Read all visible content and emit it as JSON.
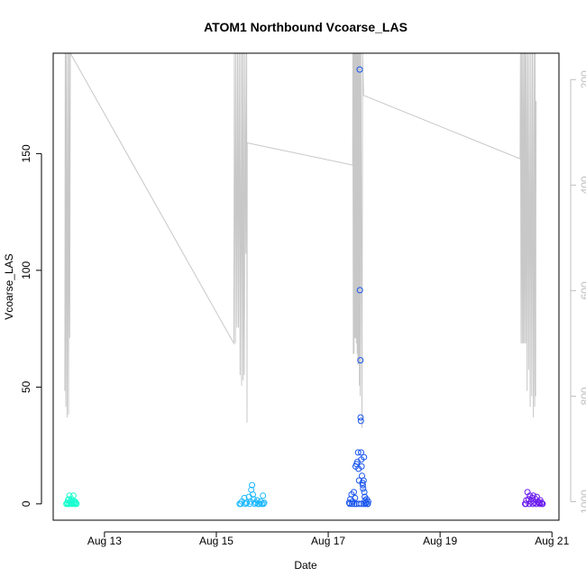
{
  "chart_data": {
    "type": "scatter",
    "title": "ATOM1 Northbound Vcoarse_LAS",
    "xlabel": "Date",
    "ylabel": "Vcoarse_LAS",
    "xlim": [
      "2019-08-12T02:00",
      "2019-08-21T03:00"
    ],
    "ylim": [
      -7,
      193
    ],
    "x_ticks": [
      "2019-08-13",
      "2019-08-15",
      "2019-08-17",
      "2019-08-19",
      "2019-08-21"
    ],
    "x_tick_labels": [
      "Aug 13",
      "Aug 15",
      "Aug 17",
      "Aug 19",
      "Aug 21"
    ],
    "y_ticks": [
      0,
      50,
      100,
      150
    ],
    "grid": false,
    "right_axis": {
      "color": "#bfbfbf",
      "ticks": [
        200,
        400,
        600,
        800,
        1000
      ],
      "range_top_to_bottom": [
        150,
        1035
      ],
      "note_series": "grey line on inverted right axis"
    },
    "series": [
      {
        "group": 1,
        "color": "#1affd0",
        "points": [
          [
            "2019-08-12T08:00",
            0.5
          ],
          [
            "2019-08-12T08:20",
            1.5
          ],
          [
            "2019-08-12T08:40",
            2
          ],
          [
            "2019-08-12T09:00",
            3.5
          ],
          [
            "2019-08-12T09:20",
            1
          ],
          [
            "2019-08-12T09:40",
            0.5
          ],
          [
            "2019-08-12T10:00",
            2
          ],
          [
            "2019-08-12T10:20",
            1
          ],
          [
            "2019-08-12T10:40",
            3.5
          ],
          [
            "2019-08-12T11:00",
            0.5
          ],
          [
            "2019-08-12T11:20",
            1
          ],
          [
            "2019-08-12T11:40",
            0.5
          ],
          [
            "2019-08-12T07:40",
            0
          ],
          [
            "2019-08-12T08:10",
            0
          ],
          [
            "2019-08-12T08:50",
            0
          ],
          [
            "2019-08-12T09:30",
            0
          ],
          [
            "2019-08-12T10:10",
            0
          ],
          [
            "2019-08-12T10:50",
            0
          ],
          [
            "2019-08-12T11:30",
            0
          ],
          [
            "2019-08-12T12:00",
            0
          ]
        ]
      },
      {
        "group": 2,
        "color": "#1ab8ff",
        "points": [
          [
            "2019-08-15T10:00",
            0
          ],
          [
            "2019-08-15T11:00",
            1
          ],
          [
            "2019-08-15T12:00",
            2.5
          ],
          [
            "2019-08-15T13:00",
            0.5
          ],
          [
            "2019-08-15T14:00",
            3
          ],
          [
            "2019-08-15T14:40",
            1
          ],
          [
            "2019-08-15T15:00",
            6
          ],
          [
            "2019-08-15T15:20",
            8
          ],
          [
            "2019-08-15T15:40",
            4
          ],
          [
            "2019-08-15T16:00",
            2
          ],
          [
            "2019-08-15T17:00",
            0.5
          ],
          [
            "2019-08-15T17:30",
            1.5
          ],
          [
            "2019-08-15T18:00",
            0
          ],
          [
            "2019-08-15T19:00",
            1
          ],
          [
            "2019-08-15T20:00",
            3.5
          ],
          [
            "2019-08-15T20:30",
            0.5
          ],
          [
            "2019-08-15T10:30",
            0
          ],
          [
            "2019-08-15T12:30",
            0
          ],
          [
            "2019-08-15T14:20",
            0
          ],
          [
            "2019-08-15T16:30",
            0
          ],
          [
            "2019-08-15T18:30",
            0
          ],
          [
            "2019-08-15T19:30",
            0
          ],
          [
            "2019-08-15T20:10",
            0
          ]
        ]
      },
      {
        "group": 3,
        "color": "#1a55ee",
        "points": [
          [
            "2019-08-17T09:00",
            0.5
          ],
          [
            "2019-08-17T09:30",
            2
          ],
          [
            "2019-08-17T10:00",
            4
          ],
          [
            "2019-08-17T10:30",
            1
          ],
          [
            "2019-08-17T11:00",
            5
          ],
          [
            "2019-08-17T11:30",
            2.5
          ],
          [
            "2019-08-17T11:45",
            16
          ],
          [
            "2019-08-17T12:10",
            17
          ],
          [
            "2019-08-17T12:30",
            18
          ],
          [
            "2019-08-17T12:50",
            22
          ],
          [
            "2019-08-17T13:00",
            15
          ],
          [
            "2019-08-17T13:15",
            10
          ],
          [
            "2019-08-17T13:30",
            186
          ],
          [
            "2019-08-17T13:35",
            91.5
          ],
          [
            "2019-08-17T13:50",
            61.5
          ],
          [
            "2019-08-17T13:55",
            37
          ],
          [
            "2019-08-17T14:00",
            35.5
          ],
          [
            "2019-08-17T14:05",
            22
          ],
          [
            "2019-08-17T14:10",
            19
          ],
          [
            "2019-08-17T14:20",
            16
          ],
          [
            "2019-08-17T14:30",
            12
          ],
          [
            "2019-08-17T14:40",
            9
          ],
          [
            "2019-08-17T14:50",
            8
          ],
          [
            "2019-08-17T15:00",
            6.5
          ],
          [
            "2019-08-17T15:10",
            10
          ],
          [
            "2019-08-17T15:20",
            20
          ],
          [
            "2019-08-17T15:30",
            5
          ],
          [
            "2019-08-17T15:40",
            3
          ],
          [
            "2019-08-17T15:50",
            1.5
          ],
          [
            "2019-08-17T16:10",
            0.5
          ],
          [
            "2019-08-17T16:30",
            2
          ],
          [
            "2019-08-17T16:50",
            0
          ],
          [
            "2019-08-17T17:10",
            1
          ],
          [
            "2019-08-17T09:15",
            0
          ],
          [
            "2019-08-17T10:15",
            0
          ],
          [
            "2019-08-17T11:15",
            0
          ],
          [
            "2019-08-17T12:00",
            0
          ],
          [
            "2019-08-17T13:10",
            0
          ],
          [
            "2019-08-17T14:15",
            0
          ],
          [
            "2019-08-17T15:15",
            0
          ],
          [
            "2019-08-17T16:00",
            0
          ],
          [
            "2019-08-17T17:00",
            0
          ]
        ]
      },
      {
        "group": 4,
        "color": "#6a1aee",
        "points": [
          [
            "2019-08-20T12:30",
            0
          ],
          [
            "2019-08-20T13:00",
            1.5
          ],
          [
            "2019-08-20T13:30",
            5
          ],
          [
            "2019-08-20T14:00",
            2
          ],
          [
            "2019-08-20T14:30",
            3.5
          ],
          [
            "2019-08-20T15:00",
            1
          ],
          [
            "2019-08-20T15:30",
            2.5
          ],
          [
            "2019-08-20T16:00",
            3.5
          ],
          [
            "2019-08-20T16:30",
            0.5
          ],
          [
            "2019-08-20T17:00",
            2
          ],
          [
            "2019-08-20T17:30",
            3
          ],
          [
            "2019-08-20T18:00",
            1
          ],
          [
            "2019-08-20T18:30",
            0.5
          ],
          [
            "2019-08-20T19:00",
            1.5
          ],
          [
            "2019-08-20T19:30",
            0.5
          ],
          [
            "2019-08-20T20:00",
            0
          ],
          [
            "2019-08-20T12:45",
            0
          ],
          [
            "2019-08-20T14:15",
            0
          ],
          [
            "2019-08-20T15:45",
            0
          ],
          [
            "2019-08-20T17:15",
            0
          ],
          [
            "2019-08-20T18:45",
            0
          ],
          [
            "2019-08-20T19:45",
            0
          ]
        ]
      }
    ],
    "right_axis_line": {
      "color": "#c8c8c8",
      "points": [
        [
          "2019-08-12T07:00",
          790
        ],
        [
          "2019-08-12T07:10",
          150
        ],
        [
          "2019-08-12T07:25",
          820
        ],
        [
          "2019-08-12T07:40",
          150
        ],
        [
          "2019-08-12T08:00",
          840
        ],
        [
          "2019-08-12T08:15",
          150
        ],
        [
          "2019-08-12T08:35",
          835
        ],
        [
          "2019-08-12T08:50",
          150
        ],
        [
          "2019-08-12T09:05",
          690
        ],
        [
          "2019-08-12T09:20",
          150
        ],
        [
          "2019-08-15T07:30",
          700
        ],
        [
          "2019-08-15T07:45",
          150
        ],
        [
          "2019-08-15T08:10",
          700
        ],
        [
          "2019-08-15T08:25",
          150
        ],
        [
          "2019-08-15T08:50",
          670
        ],
        [
          "2019-08-15T09:05",
          150
        ],
        [
          "2019-08-15T09:30",
          670
        ],
        [
          "2019-08-15T09:45",
          150
        ],
        [
          "2019-08-15T10:10",
          760
        ],
        [
          "2019-08-15T10:25",
          150
        ],
        [
          "2019-08-15T10:50",
          780
        ],
        [
          "2019-08-15T11:05",
          150
        ],
        [
          "2019-08-15T11:30",
          770
        ],
        [
          "2019-08-15T11:40",
          150
        ],
        [
          "2019-08-15T12:00",
          760
        ],
        [
          "2019-08-15T12:20",
          150
        ],
        [
          "2019-08-15T12:40",
          530
        ],
        [
          "2019-08-15T13:00",
          150
        ],
        [
          "2019-08-15T13:10",
          850
        ],
        [
          "2019-08-15T13:15",
          320
        ],
        [
          "2019-08-17T10:30",
          362
        ],
        [
          "2019-08-17T10:35",
          150
        ],
        [
          "2019-08-17T10:45",
          720
        ],
        [
          "2019-08-17T10:55",
          150
        ],
        [
          "2019-08-17T11:05",
          720
        ],
        [
          "2019-08-17T11:15",
          150
        ],
        [
          "2019-08-17T11:25",
          690
        ],
        [
          "2019-08-17T11:35",
          150
        ],
        [
          "2019-08-17T11:45",
          690
        ],
        [
          "2019-08-17T11:55",
          150
        ],
        [
          "2019-08-17T12:05",
          700
        ],
        [
          "2019-08-17T12:15",
          150
        ],
        [
          "2019-08-17T12:25",
          720
        ],
        [
          "2019-08-17T12:35",
          150
        ],
        [
          "2019-08-17T12:45",
          740
        ],
        [
          "2019-08-17T12:55",
          150
        ],
        [
          "2019-08-17T13:05",
          740
        ],
        [
          "2019-08-17T13:15",
          150
        ],
        [
          "2019-08-17T13:25",
          780
        ],
        [
          "2019-08-17T13:35",
          150
        ],
        [
          "2019-08-17T13:45",
          800
        ],
        [
          "2019-08-17T14:00",
          150
        ],
        [
          "2019-08-17T14:30",
          860
        ],
        [
          "2019-08-17T14:45",
          150
        ],
        [
          "2019-08-17T15:10",
          230
        ],
        [
          "2019-08-20T10:20",
          350
        ],
        [
          "2019-08-20T10:30",
          150
        ],
        [
          "2019-08-20T10:45",
          700
        ],
        [
          "2019-08-20T11:00",
          150
        ],
        [
          "2019-08-20T11:15",
          700
        ],
        [
          "2019-08-20T11:30",
          150
        ],
        [
          "2019-08-20T11:45",
          700
        ],
        [
          "2019-08-20T12:00",
          150
        ],
        [
          "2019-08-20T12:15",
          700
        ],
        [
          "2019-08-20T12:30",
          150
        ],
        [
          "2019-08-20T12:45",
          700
        ],
        [
          "2019-08-20T13:00",
          150
        ],
        [
          "2019-08-20T13:20",
          790
        ],
        [
          "2019-08-20T13:35",
          150
        ],
        [
          "2019-08-20T14:00",
          750
        ],
        [
          "2019-08-20T14:15",
          150
        ],
        [
          "2019-08-20T14:40",
          820
        ],
        [
          "2019-08-20T14:55",
          150
        ],
        [
          "2019-08-20T15:20",
          800
        ],
        [
          "2019-08-20T15:35",
          150
        ],
        [
          "2019-08-20T16:00",
          840
        ],
        [
          "2019-08-20T16:15",
          150
        ],
        [
          "2019-08-20T16:35",
          820
        ],
        [
          "2019-08-20T16:45",
          150
        ],
        [
          "2019-08-20T17:00",
          800
        ],
        [
          "2019-08-20T17:10",
          240
        ]
      ]
    }
  }
}
